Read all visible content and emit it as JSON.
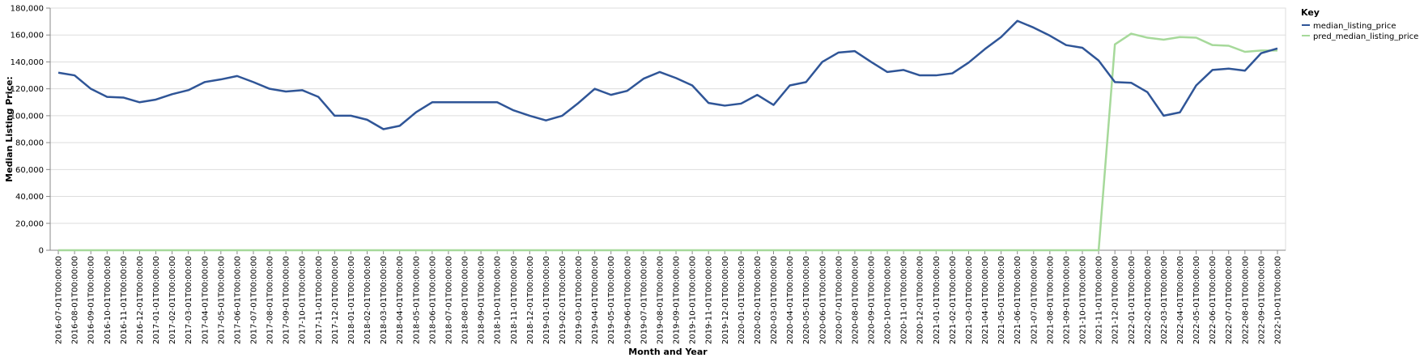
{
  "chart_data": {
    "type": "line",
    "xlabel": "Month and Year",
    "ylabel": "Median Listing Price:",
    "ylim": [
      0,
      180000
    ],
    "y_ticks": [
      0,
      20000,
      40000,
      60000,
      80000,
      100000,
      120000,
      140000,
      160000,
      180000
    ],
    "y_tick_labels": [
      "0",
      "20,000",
      "40,000",
      "60,000",
      "80,000",
      "100,000",
      "120,000",
      "140,000",
      "160,000",
      "180,000"
    ],
    "grid": true,
    "legend": {
      "title": "Key",
      "position": "right"
    },
    "x": [
      "2016-07-01T00:00:00",
      "2016-08-01T00:00:00",
      "2016-09-01T00:00:00",
      "2016-10-01T00:00:00",
      "2016-11-01T00:00:00",
      "2016-12-01T00:00:00",
      "2017-01-01T00:00:00",
      "2017-02-01T00:00:00",
      "2017-03-01T00:00:00",
      "2017-04-01T00:00:00",
      "2017-05-01T00:00:00",
      "2017-06-01T00:00:00",
      "2017-07-01T00:00:00",
      "2017-08-01T00:00:00",
      "2017-09-01T00:00:00",
      "2017-10-01T00:00:00",
      "2017-11-01T00:00:00",
      "2017-12-01T00:00:00",
      "2018-01-01T00:00:00",
      "2018-02-01T00:00:00",
      "2018-03-01T00:00:00",
      "2018-04-01T00:00:00",
      "2018-05-01T00:00:00",
      "2018-06-01T00:00:00",
      "2018-07-01T00:00:00",
      "2018-08-01T00:00:00",
      "2018-09-01T00:00:00",
      "2018-10-01T00:00:00",
      "2018-11-01T00:00:00",
      "2018-12-01T00:00:00",
      "2019-01-01T00:00:00",
      "2019-02-01T00:00:00",
      "2019-03-01T00:00:00",
      "2019-04-01T00:00:00",
      "2019-05-01T00:00:00",
      "2019-06-01T00:00:00",
      "2019-07-01T00:00:00",
      "2019-08-01T00:00:00",
      "2019-09-01T00:00:00",
      "2019-10-01T00:00:00",
      "2019-11-01T00:00:00",
      "2019-12-01T00:00:00",
      "2020-01-01T00:00:00",
      "2020-02-01T00:00:00",
      "2020-03-01T00:00:00",
      "2020-04-01T00:00:00",
      "2020-05-01T00:00:00",
      "2020-06-01T00:00:00",
      "2020-07-01T00:00:00",
      "2020-08-01T00:00:00",
      "2020-09-01T00:00:00",
      "2020-10-01T00:00:00",
      "2020-11-01T00:00:00",
      "2020-12-01T00:00:00",
      "2021-01-01T00:00:00",
      "2021-02-01T00:00:00",
      "2021-03-01T00:00:00",
      "2021-04-01T00:00:00",
      "2021-05-01T00:00:00",
      "2021-06-01T00:00:00",
      "2021-07-01T00:00:00",
      "2021-08-01T00:00:00",
      "2021-09-01T00:00:00",
      "2021-10-01T00:00:00",
      "2021-11-01T00:00:00",
      "2021-12-01T00:00:00",
      "2022-01-01T00:00:00",
      "2022-02-01T00:00:00",
      "2022-03-01T00:00:00",
      "2022-04-01T00:00:00",
      "2022-05-01T00:00:00",
      "2022-06-01T00:00:00",
      "2022-07-01T00:00:00",
      "2022-08-01T00:00:00",
      "2022-09-01T00:00:00",
      "2022-10-01T00:00:00"
    ],
    "series": [
      {
        "name": "median_listing_price",
        "color": "#2f5597",
        "values": [
          132000,
          130000,
          120000,
          114000,
          113500,
          110000,
          112000,
          116000,
          119000,
          125000,
          127000,
          129500,
          125000,
          120000,
          118000,
          119000,
          114000,
          100000,
          100000,
          97000,
          90000,
          92500,
          102500,
          110000,
          110000,
          110000,
          110000,
          110000,
          104000,
          100000,
          96500,
          100000,
          109500,
          120000,
          115500,
          118500,
          127500,
          132500,
          128000,
          122500,
          109500,
          107500,
          109000,
          115500,
          108000,
          122500,
          125000,
          140000,
          147000,
          148000,
          140000,
          132500,
          134000,
          130000,
          130000,
          131500,
          139500,
          149500,
          158500,
          170500,
          165500,
          159500,
          152500,
          150500,
          141000,
          125000,
          124500,
          117500,
          100000,
          102500,
          122500,
          134000,
          135000,
          133500,
          146500,
          150000
        ]
      },
      {
        "name": "pred_median_listing_price",
        "color": "#a6d99a",
        "values": [
          0,
          0,
          0,
          0,
          0,
          0,
          0,
          0,
          0,
          0,
          0,
          0,
          0,
          0,
          0,
          0,
          0,
          0,
          0,
          0,
          0,
          0,
          0,
          0,
          0,
          0,
          0,
          0,
          0,
          0,
          0,
          0,
          0,
          0,
          0,
          0,
          0,
          0,
          0,
          0,
          0,
          0,
          0,
          0,
          0,
          0,
          0,
          0,
          0,
          0,
          0,
          0,
          0,
          0,
          0,
          0,
          0,
          0,
          0,
          0,
          0,
          0,
          0,
          0,
          0,
          153000,
          161000,
          158000,
          156500,
          158500,
          158000,
          152500,
          152000,
          147500,
          148500,
          148500
        ]
      }
    ]
  }
}
